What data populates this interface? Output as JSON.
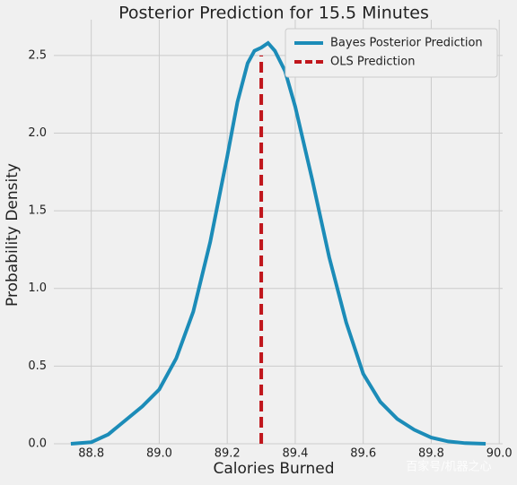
{
  "chart_data": {
    "type": "line",
    "title": "Posterior Prediction for 15.5 Minutes",
    "xlabel": "Calories Burned",
    "ylabel": "Probability Density",
    "xlim": [
      88.69,
      90.01
    ],
    "ylim": [
      0,
      2.73
    ],
    "xticks": [
      88.8,
      {
        "value": 89.0,
        "label": "89.0"
      },
      89.2,
      89.4,
      89.6,
      89.8,
      {
        "value": 90.0,
        "label": "90.0"
      }
    ],
    "yticks": [
      {
        "value": 0,
        "label": "0.0"
      },
      0.5,
      {
        "value": 1,
        "label": "1.0"
      },
      1.5,
      {
        "value": 2,
        "label": "2.0"
      },
      2.5
    ],
    "grid": true,
    "legend": "upper right",
    "series": [
      {
        "name": "Bayes Posterior Prediction",
        "color": "#1c8cb8",
        "dashed": false,
        "x": [
          88.74,
          88.8,
          88.85,
          88.9,
          88.95,
          89.0,
          89.05,
          89.1,
          89.15,
          89.2,
          89.23,
          89.26,
          89.28,
          89.3,
          89.32,
          89.34,
          89.37,
          89.4,
          89.45,
          89.5,
          89.55,
          89.6,
          89.65,
          89.7,
          89.75,
          89.8,
          89.85,
          89.9,
          89.96
        ],
        "values": [
          0,
          0.01,
          0.06,
          0.15,
          0.24,
          0.35,
          0.55,
          0.85,
          1.3,
          1.85,
          2.2,
          2.45,
          2.53,
          2.55,
          2.58,
          2.53,
          2.4,
          2.17,
          1.7,
          1.2,
          0.78,
          0.45,
          0.27,
          0.16,
          0.09,
          0.04,
          0.015,
          0.004,
          0
        ]
      },
      {
        "name": "OLS Prediction",
        "color": "#c0161c",
        "dashed": true,
        "x": [
          89.3,
          89.3
        ],
        "values": [
          0,
          2.5
        ]
      }
    ],
    "watermark": "百家号/机器之心"
  }
}
